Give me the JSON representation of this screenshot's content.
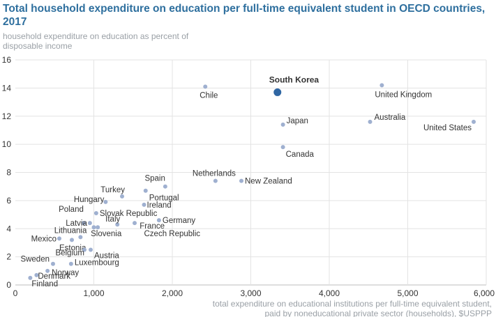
{
  "title": "Total household expenditure on education per full-time equivalent student in OECD countries, 2017",
  "subtitle": "household expenditure on education as percent of disposable income",
  "chart_data": {
    "type": "scatter",
    "xlabel_lines": [
      "total expenditure on educational institutions per full-time equivalent student,",
      "paid by noneducational private sector (households), $USPPP"
    ],
    "xlim": [
      0,
      6000
    ],
    "ylim": [
      0,
      16
    ],
    "xticks": [
      0,
      1000,
      2000,
      3000,
      4000,
      5000,
      6000
    ],
    "xtick_labels": [
      "0",
      "1,000",
      "2,000",
      "3,000",
      "4,000",
      "5,000",
      "6,000"
    ],
    "yticks": [
      0,
      2,
      4,
      6,
      8,
      10,
      12,
      14,
      16
    ],
    "ytick_labels": [
      "0",
      "2",
      "4",
      "6",
      "8",
      "10",
      "12",
      "14",
      "16"
    ],
    "grid": true,
    "colors": {
      "point": "#9fb0d0",
      "highlight": "#2f66a3",
      "grid": "#e3e3e3",
      "title": "#2e6f9e"
    },
    "points": [
      {
        "label": "South Korea",
        "x": 3340,
        "y": 13.7,
        "highlight": true
      },
      {
        "label": "Chile",
        "x": 2420,
        "y": 14.1
      },
      {
        "label": "United Kingdom",
        "x": 4670,
        "y": 14.2
      },
      {
        "label": "Japan",
        "x": 3410,
        "y": 11.4
      },
      {
        "label": "Australia",
        "x": 4520,
        "y": 11.6
      },
      {
        "label": "United States",
        "x": 5840,
        "y": 11.6
      },
      {
        "label": "Canada",
        "x": 3410,
        "y": 9.8
      },
      {
        "label": "Netherlands",
        "x": 2550,
        "y": 7.4
      },
      {
        "label": "New Zealand",
        "x": 2880,
        "y": 7.4
      },
      {
        "label": "Spain",
        "x": 1910,
        "y": 7.0
      },
      {
        "label": "Portugal",
        "x": 1660,
        "y": 6.7
      },
      {
        "label": "Turkey",
        "x": 1360,
        "y": 6.3
      },
      {
        "label": "Hungary",
        "x": 1150,
        "y": 5.9
      },
      {
        "label": "Ireland",
        "x": 1640,
        "y": 5.7
      },
      {
        "label": "Poland",
        "x": 870,
        "y": 4.4
      },
      {
        "label": "Slovak Republic",
        "x": 1030,
        "y": 5.1
      },
      {
        "label": "Latvia",
        "x": 950,
        "y": 4.4
      },
      {
        "label": "Italy",
        "x": 1300,
        "y": 4.3
      },
      {
        "label": "Germany",
        "x": 1830,
        "y": 4.6
      },
      {
        "label": "France",
        "x": 1520,
        "y": 4.4
      },
      {
        "label": "Slovenia",
        "x": 1050,
        "y": 4.1
      },
      {
        "label": "Czech Republic",
        "x": 1000,
        "y": 4.1
      },
      {
        "label": "Lithuania",
        "x": 830,
        "y": 3.4
      },
      {
        "label": "Mexico",
        "x": 560,
        "y": 3.3
      },
      {
        "label": "Estonia",
        "x": 720,
        "y": 3.2
      },
      {
        "label": "Belgium",
        "x": 880,
        "y": 2.5
      },
      {
        "label": "Austria",
        "x": 960,
        "y": 2.5
      },
      {
        "label": "Sweden",
        "x": 480,
        "y": 1.5
      },
      {
        "label": "Luxembourg",
        "x": 710,
        "y": 1.5
      },
      {
        "label": "Norway",
        "x": 410,
        "y": 1.0
      },
      {
        "label": "Denmark",
        "x": 270,
        "y": 0.7
      },
      {
        "label": "Finland",
        "x": 190,
        "y": 0.5
      }
    ]
  }
}
